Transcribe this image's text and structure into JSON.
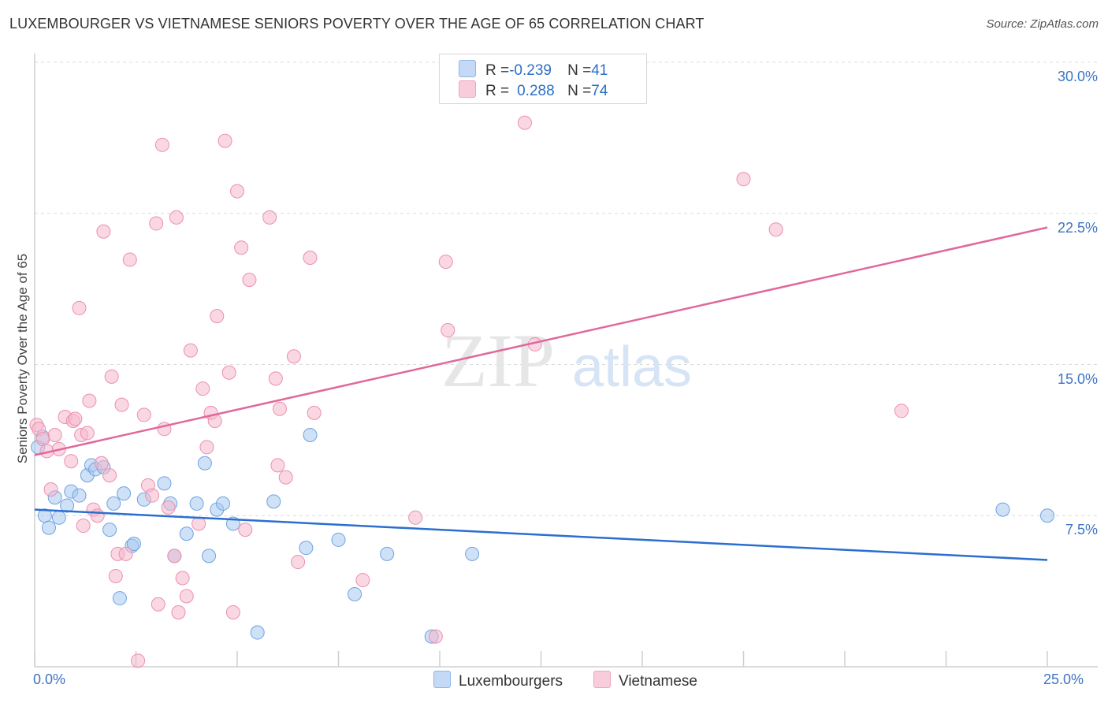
{
  "title": "LUXEMBOURGER VS VIETNAMESE SENIORS POVERTY OVER THE AGE OF 65 CORRELATION CHART",
  "source": "Source: ZipAtlas.com",
  "watermark": {
    "zip": "ZIP",
    "atlas": "atlas"
  },
  "legend": {
    "rows": [
      {
        "r_label": "R = ",
        "r_value": "-0.239",
        "n_label": "N = ",
        "n_value": "41",
        "color": "#a8c8f0"
      },
      {
        "r_label": "R = ",
        "r_value": "0.288",
        "n_label": "N = ",
        "n_value": "74",
        "color": "#f5b8cc"
      }
    ]
  },
  "bottom_legend": [
    {
      "label": "Luxembourgers",
      "color": "#a8c8f0"
    },
    {
      "label": "Vietnamese",
      "color": "#f5b8cc"
    }
  ],
  "chart_data": {
    "type": "scatter",
    "xlabel": "",
    "ylabel": "Seniors Poverty Over the Age of 65",
    "xlim": [
      0,
      25
    ],
    "ylim": [
      0,
      30
    ],
    "x_tick_labels": [
      "0.0%",
      "25.0%"
    ],
    "y_ticks": [
      {
        "value": 7.5,
        "label": "7.5%"
      },
      {
        "value": 15.0,
        "label": "15.0%"
      },
      {
        "value": 22.5,
        "label": "22.5%"
      },
      {
        "value": 30.0,
        "label": "30.0%"
      }
    ],
    "grid": "horizontal dashed",
    "series": [
      {
        "name": "Luxembourgers",
        "color": "#6fa3e0",
        "fill": "#a8c8f0",
        "trend": {
          "x": [
            0,
            25
          ],
          "y": [
            7.8,
            5.3
          ],
          "color": "#2a6fcf"
        },
        "points": [
          [
            0.08,
            10.9
          ],
          [
            0.2,
            11.4
          ],
          [
            0.25,
            7.5
          ],
          [
            0.35,
            6.9
          ],
          [
            0.5,
            8.4
          ],
          [
            0.6,
            7.4
          ],
          [
            0.8,
            8.0
          ],
          [
            0.9,
            8.7
          ],
          [
            1.1,
            8.5
          ],
          [
            1.3,
            9.5
          ],
          [
            1.4,
            10.0
          ],
          [
            1.5,
            9.8
          ],
          [
            1.7,
            9.9
          ],
          [
            1.85,
            6.8
          ],
          [
            1.95,
            8.1
          ],
          [
            2.1,
            3.4
          ],
          [
            2.2,
            8.6
          ],
          [
            2.4,
            6.0
          ],
          [
            2.45,
            6.1
          ],
          [
            2.7,
            8.3
          ],
          [
            3.2,
            9.1
          ],
          [
            3.35,
            8.1
          ],
          [
            3.45,
            5.5
          ],
          [
            3.75,
            6.6
          ],
          [
            4.0,
            8.1
          ],
          [
            4.2,
            10.1
          ],
          [
            4.3,
            5.5
          ],
          [
            4.5,
            7.8
          ],
          [
            4.65,
            8.1
          ],
          [
            4.9,
            7.1
          ],
          [
            5.5,
            1.7
          ],
          [
            5.9,
            8.2
          ],
          [
            6.7,
            5.9
          ],
          [
            6.8,
            11.5
          ],
          [
            7.5,
            6.3
          ],
          [
            7.9,
            3.6
          ],
          [
            8.7,
            5.6
          ],
          [
            9.8,
            1.5
          ],
          [
            10.8,
            5.6
          ],
          [
            23.9,
            7.8
          ],
          [
            25.0,
            7.5
          ]
        ]
      },
      {
        "name": "Vietnamese",
        "color": "#ec8fae",
        "fill": "#f5b8cc",
        "trend": {
          "x": [
            0,
            25
          ],
          "y": [
            10.5,
            21.8
          ],
          "color": "#e0689a"
        },
        "points": [
          [
            0.05,
            12.0
          ],
          [
            0.1,
            11.8
          ],
          [
            0.2,
            11.3
          ],
          [
            0.3,
            10.7
          ],
          [
            0.4,
            8.8
          ],
          [
            0.5,
            11.5
          ],
          [
            0.6,
            10.8
          ],
          [
            0.75,
            12.4
          ],
          [
            0.9,
            10.2
          ],
          [
            0.95,
            12.2
          ],
          [
            1.0,
            12.3
          ],
          [
            1.1,
            17.8
          ],
          [
            1.15,
            11.5
          ],
          [
            1.2,
            7.0
          ],
          [
            1.3,
            11.6
          ],
          [
            1.35,
            13.2
          ],
          [
            1.45,
            7.8
          ],
          [
            1.55,
            7.5
          ],
          [
            1.65,
            10.1
          ],
          [
            1.7,
            21.6
          ],
          [
            1.85,
            9.5
          ],
          [
            1.9,
            14.4
          ],
          [
            2.0,
            4.5
          ],
          [
            2.05,
            5.6
          ],
          [
            2.15,
            13.0
          ],
          [
            2.25,
            5.6
          ],
          [
            2.35,
            20.2
          ],
          [
            2.55,
            0.3
          ],
          [
            2.7,
            12.5
          ],
          [
            2.8,
            9.0
          ],
          [
            2.9,
            8.5
          ],
          [
            3.0,
            22.0
          ],
          [
            3.05,
            3.1
          ],
          [
            3.15,
            25.9
          ],
          [
            3.2,
            11.8
          ],
          [
            3.3,
            7.9
          ],
          [
            3.45,
            5.5
          ],
          [
            3.5,
            22.3
          ],
          [
            3.55,
            2.7
          ],
          [
            3.65,
            4.4
          ],
          [
            3.75,
            3.5
          ],
          [
            3.85,
            15.7
          ],
          [
            4.05,
            7.1
          ],
          [
            4.15,
            13.8
          ],
          [
            4.25,
            10.9
          ],
          [
            4.35,
            12.6
          ],
          [
            4.45,
            12.2
          ],
          [
            4.5,
            17.4
          ],
          [
            4.7,
            26.1
          ],
          [
            4.8,
            14.6
          ],
          [
            4.9,
            2.7
          ],
          [
            5.0,
            23.6
          ],
          [
            5.1,
            20.8
          ],
          [
            5.2,
            6.8
          ],
          [
            5.3,
            19.2
          ],
          [
            5.8,
            22.3
          ],
          [
            5.95,
            14.3
          ],
          [
            6.0,
            10.0
          ],
          [
            6.05,
            12.8
          ],
          [
            6.2,
            9.4
          ],
          [
            6.4,
            15.4
          ],
          [
            6.5,
            5.2
          ],
          [
            6.8,
            20.3
          ],
          [
            6.9,
            12.6
          ],
          [
            8.1,
            4.3
          ],
          [
            9.4,
            7.4
          ],
          [
            9.9,
            1.5
          ],
          [
            10.15,
            20.1
          ],
          [
            10.2,
            16.7
          ],
          [
            12.1,
            27.0
          ],
          [
            12.35,
            16.0
          ],
          [
            17.5,
            24.2
          ],
          [
            18.3,
            21.7
          ],
          [
            21.4,
            12.7
          ]
        ]
      }
    ]
  }
}
